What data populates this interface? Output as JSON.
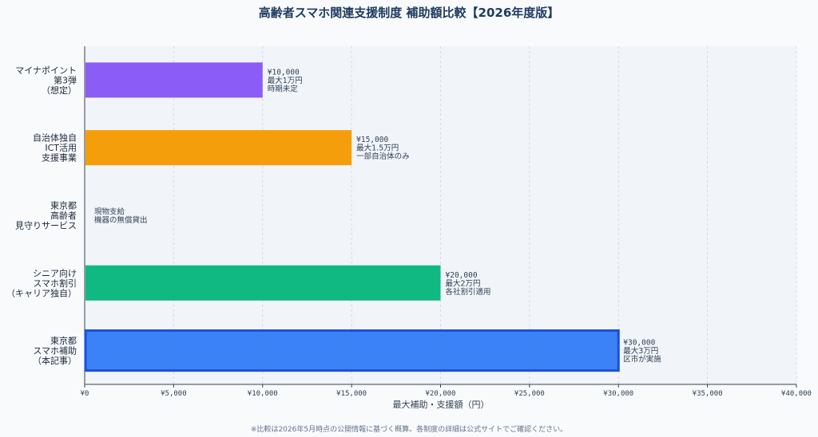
{
  "chart_data": {
    "type": "bar",
    "orientation": "horizontal",
    "title": "高齢者スマホ関連支援制度 補助額比較【2026年度版】",
    "xlabel": "最大補助・支援額（円）",
    "ylabel": "",
    "xlim": [
      0,
      40000
    ],
    "x_ticks": [
      {
        "value": 0,
        "label": "¥0"
      },
      {
        "value": 5000,
        "label": "¥5,000"
      },
      {
        "value": 10000,
        "label": "¥10,000"
      },
      {
        "value": 15000,
        "label": "¥15,000"
      },
      {
        "value": 20000,
        "label": "¥20,000"
      },
      {
        "value": 25000,
        "label": "¥25,000"
      },
      {
        "value": 30000,
        "label": "¥30,000"
      },
      {
        "value": 35000,
        "label": "¥35,000"
      },
      {
        "value": 40000,
        "label": "¥40,000"
      }
    ],
    "grid": "vertical",
    "bars": [
      {
        "label_lines": [
          "マイナポイント",
          "第3弾",
          "（想定）"
        ],
        "value": 10000,
        "color": "#8b5cf6",
        "highlight": false,
        "annotation": [
          "¥10,000",
          "最大1万円",
          "時期未定"
        ]
      },
      {
        "label_lines": [
          "自治体独自",
          "ICT活用",
          "支援事業"
        ],
        "value": 15000,
        "color": "#f59e0b",
        "highlight": false,
        "annotation": [
          "¥15,000",
          "最大1.5万円",
          "一部自治体のみ"
        ]
      },
      {
        "label_lines": [
          "東京都",
          "高齢者",
          "見守りサービス"
        ],
        "value": 0,
        "color": "#94a3b8",
        "highlight": false,
        "annotation": [
          "現物支給",
          "機器の無償貸出"
        ]
      },
      {
        "label_lines": [
          "シニア向け",
          "スマホ割引",
          "（キャリア独自）"
        ],
        "value": 20000,
        "color": "#10b981",
        "highlight": false,
        "annotation": [
          "¥20,000",
          "最大2万円",
          "各社割引適用"
        ]
      },
      {
        "label_lines": [
          "東京都",
          "スマホ補助",
          "（本記事）"
        ],
        "value": 30000,
        "color": "#3b82f6",
        "highlight": true,
        "border_color": "#1d4ed8",
        "annotation": [
          "¥30,000",
          "最大3万円",
          "区市が実施"
        ]
      }
    ]
  },
  "footnote": "※比較は2026年5月時点の公開情報に基づく概算。各制度の詳細は公式サイトでご確認ください。"
}
